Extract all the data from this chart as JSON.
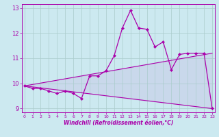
{
  "xlabel": "Windchill (Refroidissement éolien,°C)",
  "background_color": "#cce9f0",
  "line_color": "#aa00aa",
  "grid_color": "#aacccc",
  "x_hours": [
    0,
    1,
    2,
    3,
    4,
    5,
    6,
    7,
    8,
    9,
    10,
    11,
    12,
    13,
    14,
    15,
    16,
    17,
    18,
    19,
    20,
    21,
    22,
    23
  ],
  "y_windchill": [
    9.9,
    9.8,
    9.8,
    9.7,
    9.6,
    9.7,
    9.6,
    9.4,
    10.3,
    10.3,
    10.5,
    11.1,
    12.2,
    12.9,
    12.2,
    12.15,
    11.45,
    11.65,
    10.55,
    11.15,
    11.2,
    11.2,
    11.2,
    9.0
  ],
  "upper_line_x": [
    0,
    23
  ],
  "upper_line_y": [
    9.9,
    11.2
  ],
  "lower_line_x": [
    0,
    23
  ],
  "lower_line_y": [
    9.9,
    9.0
  ],
  "ylim": [
    8.85,
    13.15
  ],
  "yticks": [
    9,
    10,
    11,
    12,
    13
  ],
  "xticks": [
    0,
    1,
    2,
    3,
    4,
    5,
    6,
    7,
    8,
    9,
    10,
    11,
    12,
    13,
    14,
    15,
    16,
    17,
    18,
    19,
    20,
    21,
    22,
    23
  ],
  "xlim": [
    -0.3,
    23.3
  ]
}
